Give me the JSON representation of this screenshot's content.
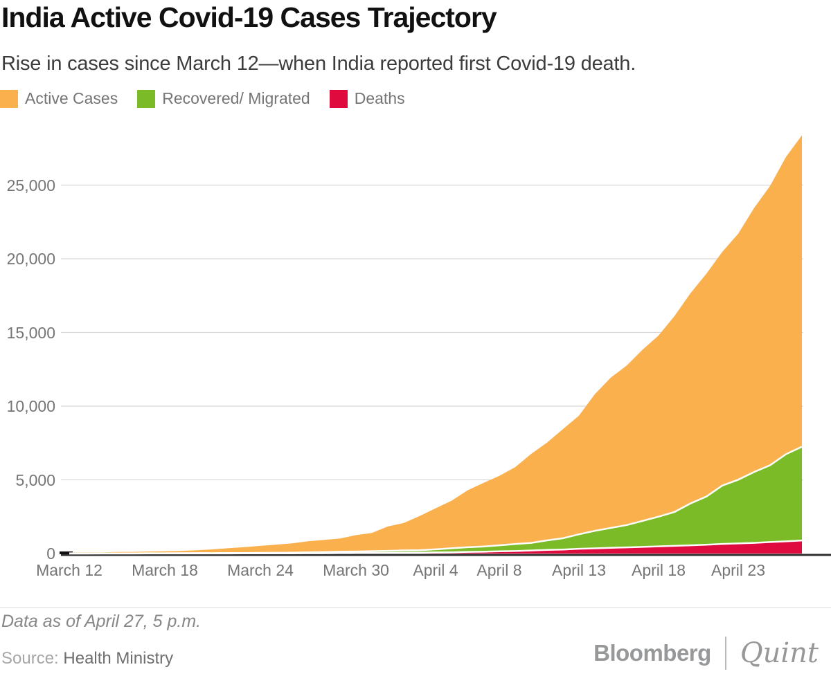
{
  "header": {
    "title": "India Active Covid-19 Cases Trajectory",
    "subtitle": "Rise in cases since March 12—when India reported first Covid-19 death."
  },
  "legend": {
    "items": [
      {
        "label": "Active Cases",
        "color": "#FBB04E"
      },
      {
        "label": "Recovered/ Migrated",
        "color": "#7CBB28"
      },
      {
        "label": "Deaths",
        "color": "#DF0A3D"
      }
    ]
  },
  "footer": {
    "note": "Data as of April 27, 5 p.m.",
    "source_prefix": "Source:",
    "source_name": "Health Ministry",
    "brand_left": "Bloomberg",
    "brand_right": "Quint"
  },
  "chart_data": {
    "type": "area",
    "stacked": true,
    "title": "India Active Covid-19 Cases Trajectory",
    "xlabel": "",
    "ylabel": "",
    "ylim": [
      0,
      28500
    ],
    "grid": true,
    "legend_position": "top-left",
    "x": [
      "March 12",
      "March 13",
      "March 14",
      "March 15",
      "March 16",
      "March 17",
      "March 18",
      "March 19",
      "March 20",
      "March 21",
      "March 22",
      "March 23",
      "March 24",
      "March 25",
      "March 26",
      "March 27",
      "March 28",
      "March 29",
      "March 30",
      "March 31",
      "April 1",
      "April 2",
      "April 3",
      "April 4",
      "April 5",
      "April 6",
      "April 7",
      "April 8",
      "April 9",
      "April 10",
      "April 11",
      "April 12",
      "April 13",
      "April 14",
      "April 15",
      "April 16",
      "April 17",
      "April 18",
      "April 19",
      "April 20",
      "April 21",
      "April 22",
      "April 23",
      "April 24",
      "April 25",
      "April 26",
      "April 27"
    ],
    "stack_order_bottom_to_top": [
      "Deaths",
      "Recovered/ Migrated",
      "Active Cases"
    ],
    "series": [
      {
        "name": "Deaths",
        "color": "#DF0A3D",
        "values": [
          1,
          2,
          2,
          2,
          2,
          3,
          3,
          4,
          4,
          4,
          7,
          8,
          9,
          10,
          16,
          19,
          19,
          27,
          32,
          35,
          41,
          53,
          62,
          75,
          83,
          111,
          124,
          149,
          169,
          206,
          242,
          273,
          324,
          353,
          392,
          420,
          452,
          488,
          519,
          559,
          603,
          652,
          686,
          723,
          779,
          826,
          886
        ]
      },
      {
        "name": "Recovered/ Migrated",
        "color": "#7CBB28",
        "values": [
          4,
          4,
          10,
          10,
          13,
          14,
          14,
          20,
          23,
          23,
          24,
          24,
          40,
          43,
          45,
          66,
          79,
          95,
          102,
          123,
          143,
          156,
          162,
          212,
          274,
          318,
          352,
          410,
          477,
          515,
          652,
          765,
          979,
          1189,
          1344,
          1514,
          1766,
          2015,
          2302,
          2842,
          3260,
          3960,
          4325,
          4814,
          5210,
          5914,
          6362
        ]
      },
      {
        "name": "Active Cases",
        "color": "#FBB04E",
        "values": [
          69,
          75,
          72,
          95,
          99,
          120,
          134,
          149,
          196,
          256,
          329,
          402,
          470,
          553,
          633,
          749,
          820,
          902,
          1117,
          1239,
          1650,
          1860,
          2323,
          2785,
          3220,
          3852,
          4313,
          4715,
          5219,
          6040,
          6635,
          7409,
          8049,
          9273,
          10197,
          10825,
          11617,
          12289,
          13295,
          14255,
          15122,
          15859,
          16689,
          17915,
          18953,
          20177,
          21132
        ]
      }
    ],
    "y_ticks": [
      {
        "label": "0",
        "value": 0
      },
      {
        "label": "5,000",
        "value": 5000
      },
      {
        "label": "10,000",
        "value": 10000
      },
      {
        "label": "15,000",
        "value": 15000
      },
      {
        "label": "20,000",
        "value": 20000
      },
      {
        "label": "25,000",
        "value": 25000
      }
    ],
    "x_ticks": [
      {
        "label": "March 12",
        "day": 0
      },
      {
        "label": "March 18",
        "day": 6
      },
      {
        "label": "March 24",
        "day": 12
      },
      {
        "label": "March 30",
        "day": 18
      },
      {
        "label": "April 4",
        "day": 23
      },
      {
        "label": "April 8",
        "day": 27
      },
      {
        "label": "April 13",
        "day": 32
      },
      {
        "label": "April 18",
        "day": 37
      },
      {
        "label": "April 23",
        "day": 42
      }
    ]
  }
}
